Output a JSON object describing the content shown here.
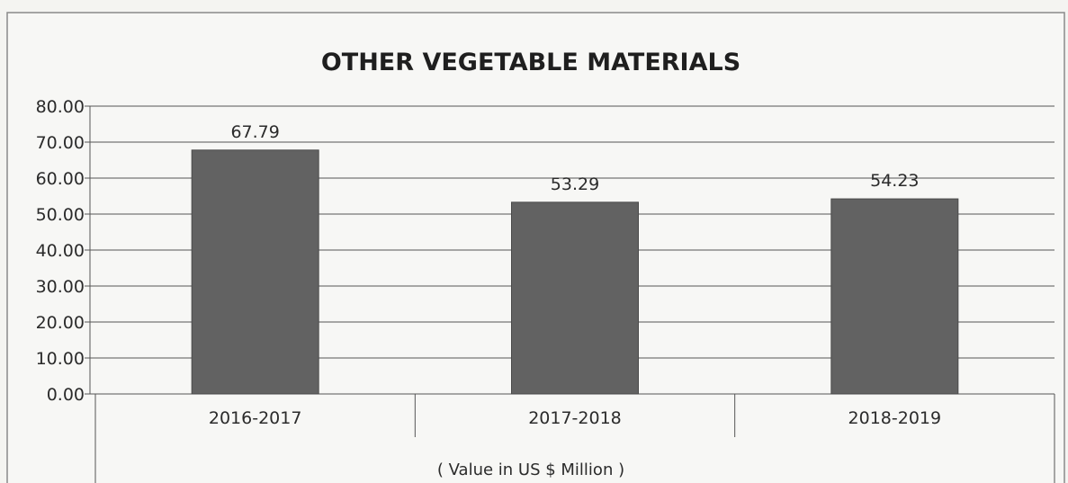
{
  "chart_data": {
    "type": "bar",
    "title": "OTHER VEGETABLE MATERIALS",
    "categories": [
      "2016-2017",
      "2017-2018",
      "2018-2019"
    ],
    "values": [
      67.79,
      53.29,
      54.23
    ],
    "value_labels": [
      "67.79",
      "53.29",
      "54.23"
    ],
    "ylim": [
      0,
      80
    ],
    "yticks": [
      "0.00",
      "10.00",
      "20.00",
      "30.00",
      "40.00",
      "50.00",
      "60.00",
      "70.00",
      "80.00"
    ],
    "xlabel": "( Value in US $ Million )",
    "ylabel": "",
    "grid": true,
    "colors": {
      "bar": "#626262"
    }
  }
}
